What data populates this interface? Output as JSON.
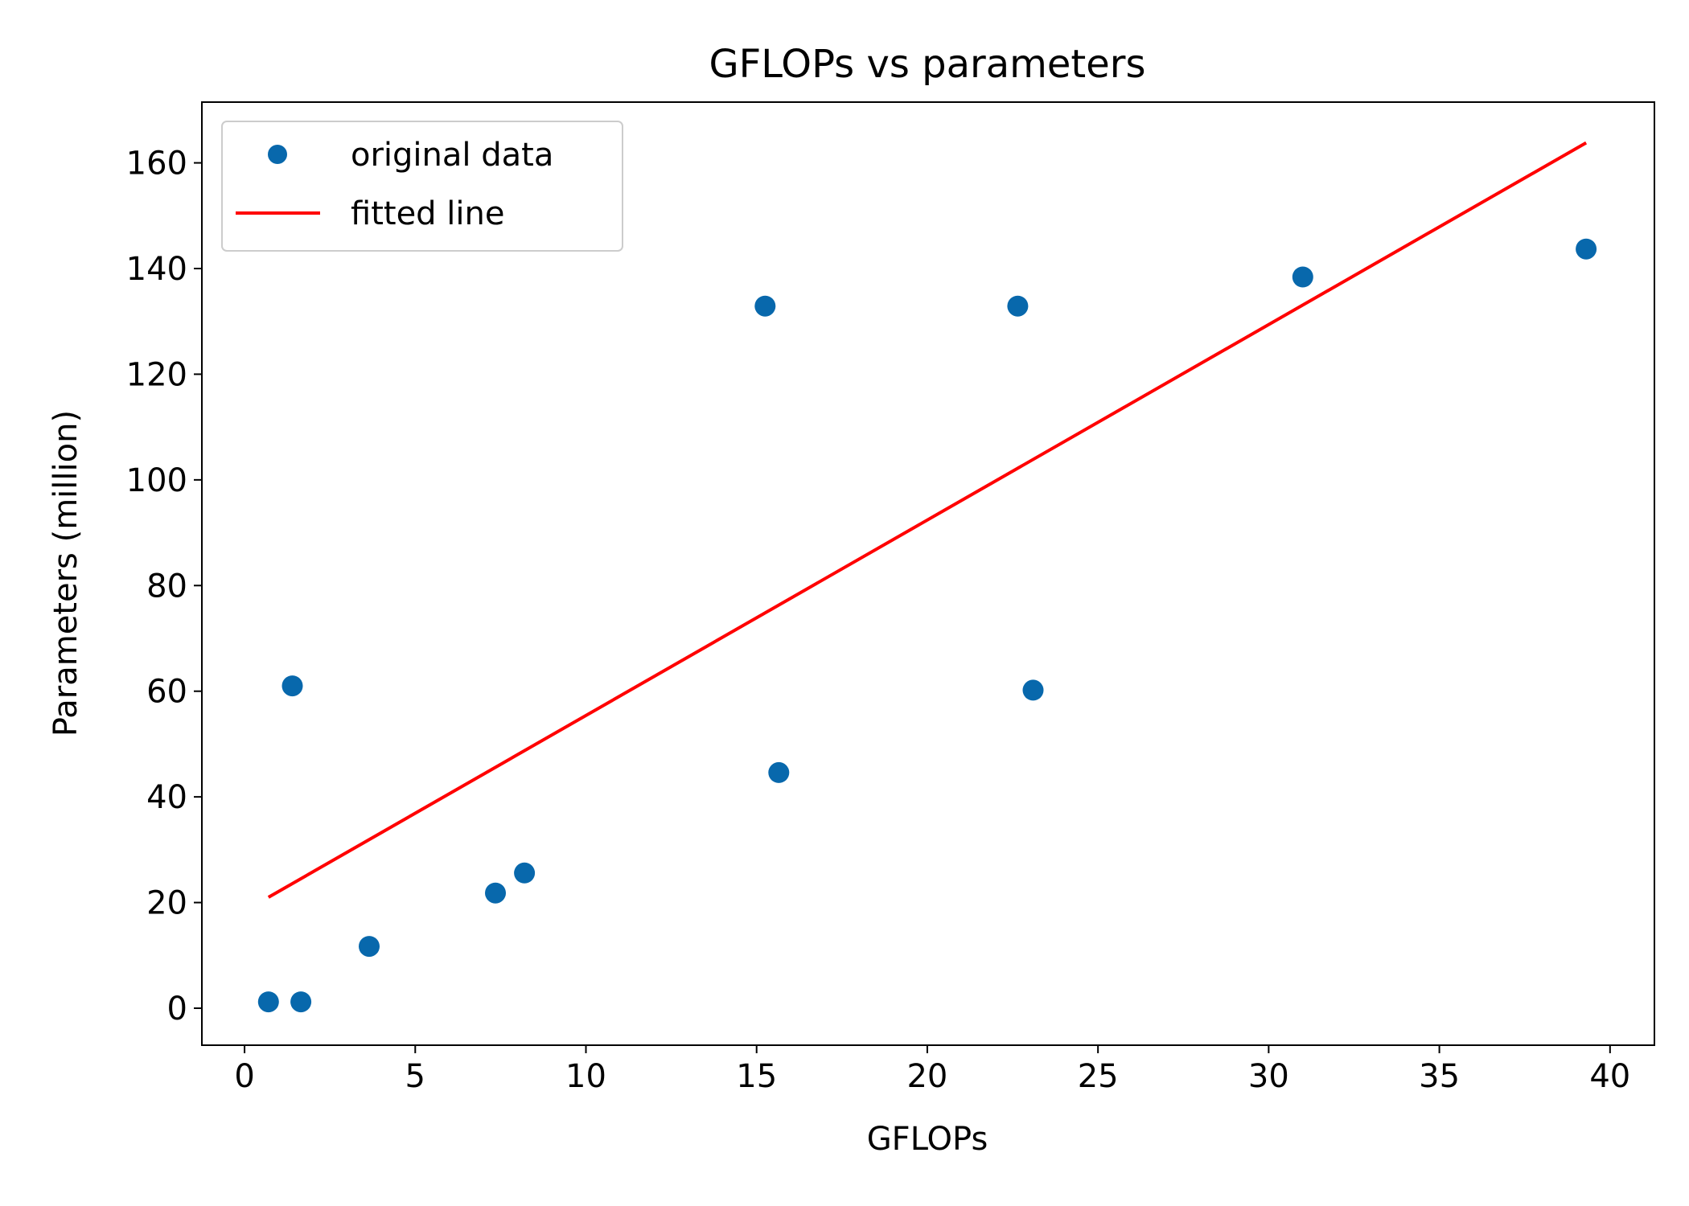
{
  "chart_data": {
    "type": "scatter",
    "title": "GFLOPs vs parameters",
    "xlabel": "GFLOPs",
    "ylabel": "Parameters (million)",
    "xlim": [
      -1.25,
      41.3
    ],
    "ylim": [
      -7,
      171.5
    ],
    "xticks": [
      0,
      5,
      10,
      15,
      20,
      25,
      30,
      35,
      40
    ],
    "yticks": [
      0,
      20,
      40,
      60,
      80,
      100,
      120,
      140,
      160
    ],
    "grid": false,
    "legend_position": "top-left",
    "series": [
      {
        "name": "original data",
        "kind": "points",
        "color": "#0868ac",
        "x": [
          0.7,
          1.4,
          1.65,
          3.65,
          7.35,
          8.2,
          15.25,
          15.65,
          22.65,
          23.1,
          31.0,
          39.3
        ],
        "y": [
          1.2,
          61.0,
          1.2,
          11.7,
          21.8,
          25.6,
          132.9,
          44.6,
          132.9,
          60.2,
          138.4,
          143.7
        ]
      },
      {
        "name": "fitted line",
        "kind": "line",
        "color": "#ff0000",
        "x": [
          0.7,
          39.3
        ],
        "y": [
          21.0,
          163.8
        ]
      }
    ]
  }
}
